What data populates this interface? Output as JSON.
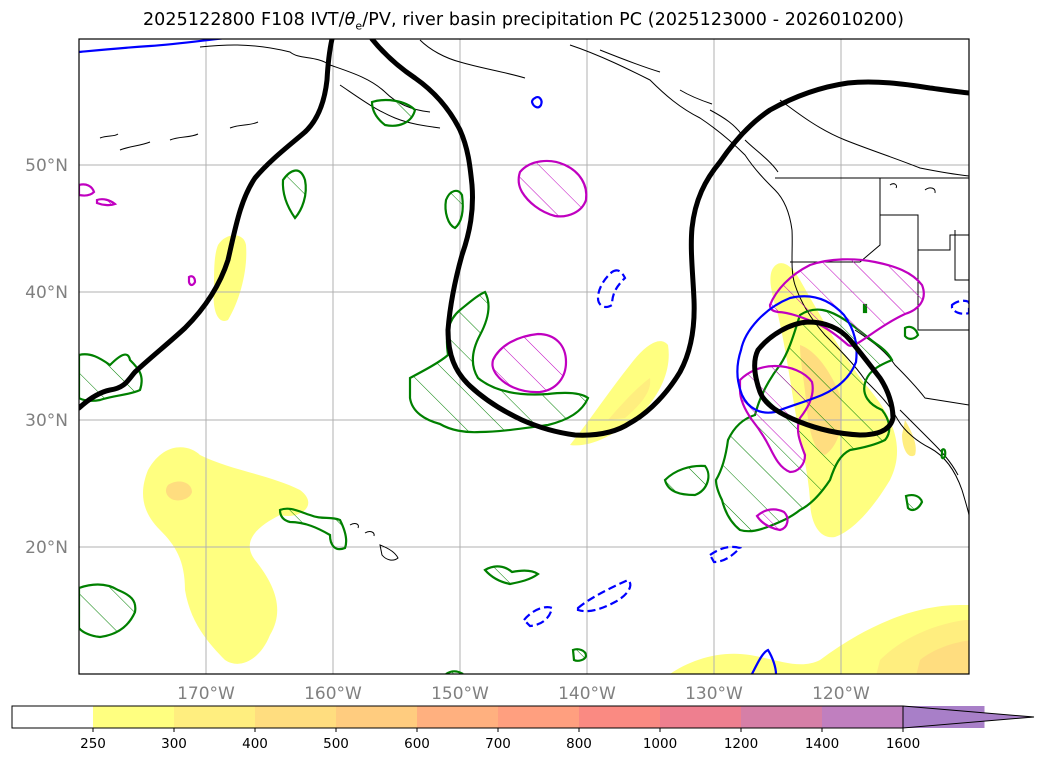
{
  "title": {
    "prefix": "2025122800 F108 IVT/",
    "theta": "θ",
    "theta_sub": "e",
    "suffix": "/PV, river basin precipitation PC (2025123000 - 2026010200)"
  },
  "map": {
    "lat_labels": [
      "50°N",
      "40°N",
      "30°N",
      "20°N"
    ],
    "lon_labels": [
      "170°W",
      "160°W",
      "150°W",
      "140°W",
      "130°W",
      "120°W"
    ]
  },
  "colorbar": {
    "ticks": [
      "250",
      "300",
      "400",
      "500",
      "600",
      "700",
      "800",
      "1000",
      "1200",
      "1400",
      "1600"
    ],
    "colors": [
      "#ffffff",
      "#ffff80",
      "#ffee7f",
      "#ffdd7f",
      "#ffcc7f",
      "#ffb07f",
      "#ff9f7f",
      "#fa8a82",
      "#ee7f8f",
      "#d67fa7",
      "#c07fbf",
      "#a87fc8"
    ],
    "extend": "max"
  },
  "colors": {
    "frame": "#000000",
    "grid": "#b0b0b0",
    "ivt_fill": "#ffff80",
    "contour_green": "#008000",
    "contour_magenta": "#c000c0",
    "contour_blue": "#0000ff",
    "contour_black": "#000000"
  }
}
